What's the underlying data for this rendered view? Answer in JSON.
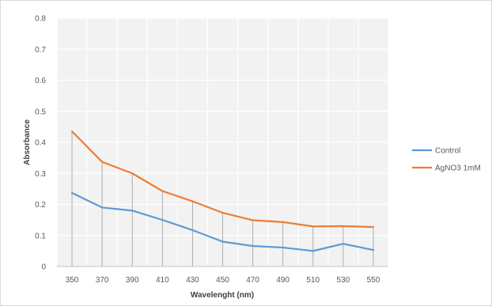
{
  "chart_data": {
    "type": "line",
    "title": "",
    "xlabel": "Wavelenght (nm)",
    "ylabel": "Absorbance",
    "x": [
      350,
      370,
      390,
      410,
      430,
      450,
      470,
      490,
      510,
      530,
      550
    ],
    "ylim": [
      0,
      0.8
    ],
    "yticks": [
      "0",
      "0.1",
      "0.2",
      "0.3",
      "0.4",
      "0.5",
      "0.6",
      "0.7",
      "0.8"
    ],
    "grid": true,
    "drop_lines": true,
    "legend_position": "right",
    "series": [
      {
        "name": "Control",
        "color": "#5B9BD5",
        "values": [
          0.237,
          0.19,
          0.18,
          0.15,
          0.117,
          0.08,
          0.066,
          0.061,
          0.05,
          0.073,
          0.053
        ]
      },
      {
        "name": "AgNO3 1mM",
        "color": "#ED7D31",
        "values": [
          0.435,
          0.337,
          0.3,
          0.243,
          0.21,
          0.173,
          0.149,
          0.143,
          0.129,
          0.13,
          0.127
        ]
      }
    ]
  }
}
